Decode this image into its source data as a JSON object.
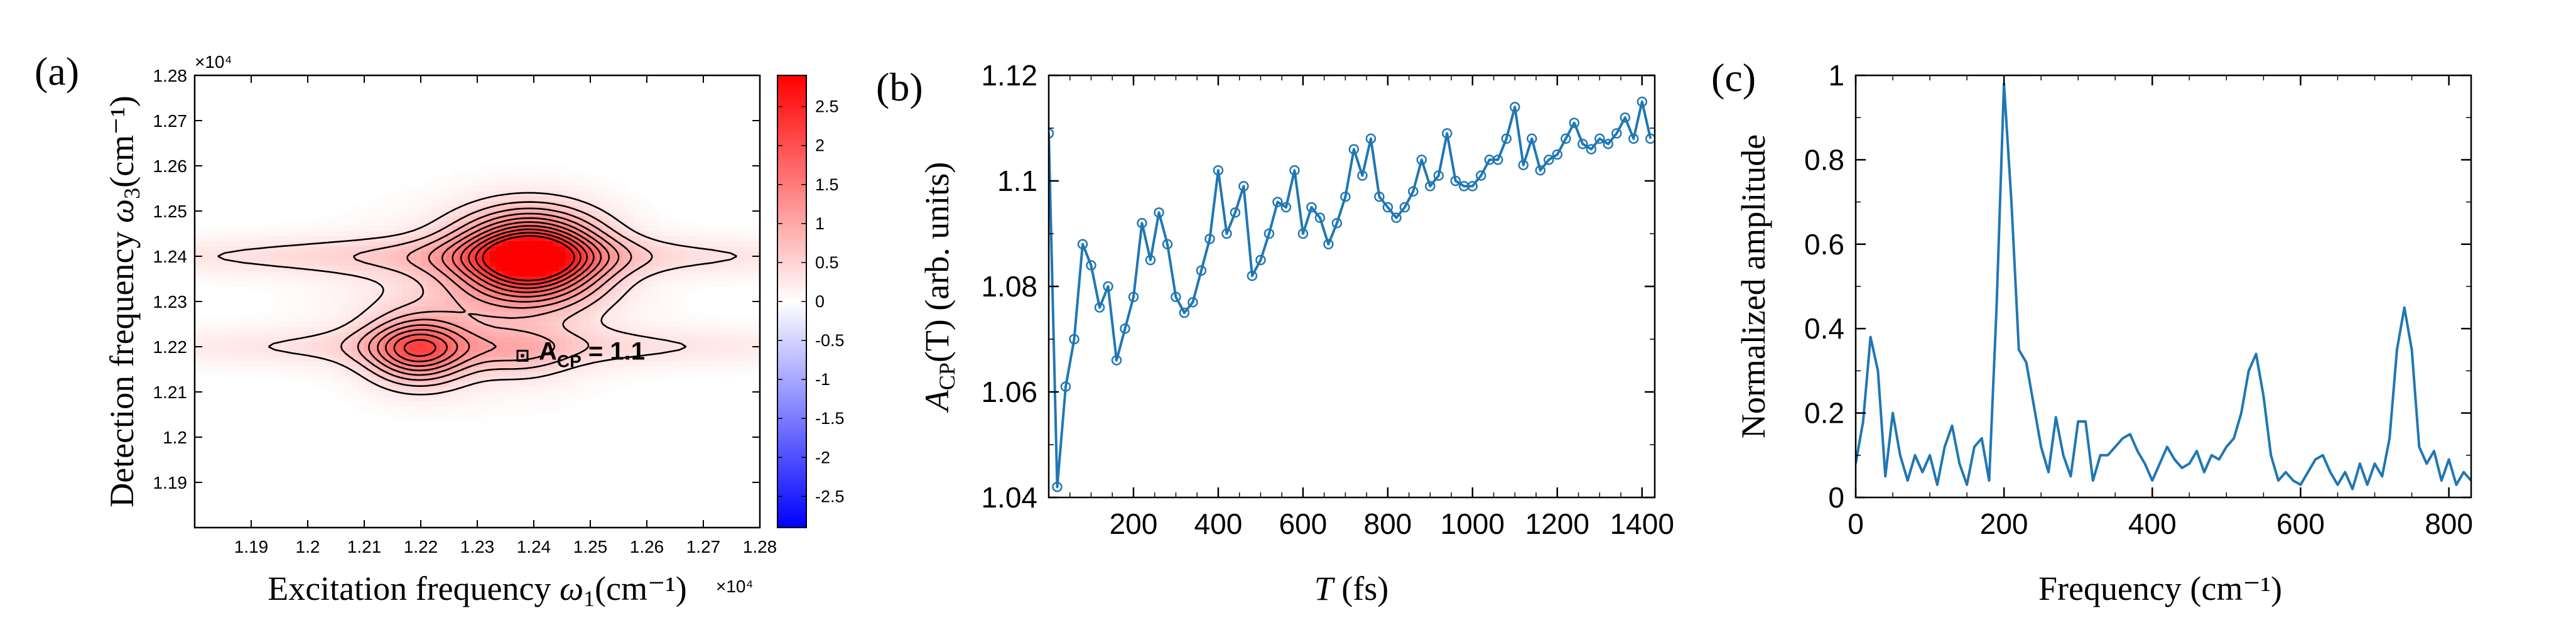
{
  "chart_data": [
    {
      "panel": "(a)",
      "type": "heatmap",
      "xlabel": "Excitation frequency",
      "xlabel_sym": "ω",
      "xlabel_sub": "1",
      "xlabel_unit": "(cm⁻¹)",
      "ylabel": "Detection frequency",
      "ylabel_sym": "ω",
      "ylabel_sub": "3",
      "ylabel_unit": "(cm⁻¹)",
      "x_exponent": "×10⁴",
      "y_exponent": "×10⁴",
      "xlim": [
        1.18,
        1.28
      ],
      "ylim": [
        1.18,
        1.28
      ],
      "xticks": [
        1.19,
        1.2,
        1.21,
        1.22,
        1.23,
        1.24,
        1.25,
        1.26,
        1.27,
        1.28
      ],
      "yticks": [
        1.19,
        1.2,
        1.21,
        1.22,
        1.23,
        1.24,
        1.25,
        1.26,
        1.27,
        1.28
      ],
      "xtick_labels": [
        "1.19",
        "1.2",
        "1.21",
        "1.22",
        "1.23",
        "1.24",
        "1.25",
        "1.26",
        "1.27",
        "1.28"
      ],
      "ytick_labels": [
        "1.19",
        "1.2",
        "1.21",
        "1.22",
        "1.23",
        "1.24",
        "1.25",
        "1.26",
        "1.27",
        "1.28"
      ],
      "peaks": [
        {
          "x": 1.2395,
          "y": 1.2398,
          "amp": 2.9,
          "sx": 0.0085,
          "sy": 0.0065
        },
        {
          "x": 1.2195,
          "y": 1.2192,
          "amp": 1.6,
          "sx": 0.006,
          "sy": 0.005
        },
        {
          "x": 1.23,
          "y": 1.23,
          "amp": 0.45,
          "sx": 0.015,
          "sy": 0.011
        },
        {
          "x": 1.238,
          "y": 1.218,
          "amp": 0.35,
          "sx": 0.006,
          "sy": 0.004
        },
        {
          "x": 1.23,
          "y": 1.24,
          "amp": 0.5,
          "sx": 0.045,
          "sy": 0.003
        },
        {
          "x": 1.23,
          "y": 1.22,
          "amp": 0.4,
          "sx": 0.045,
          "sy": 0.003
        }
      ],
      "contour_levels": [
        0.3,
        0.55,
        0.8,
        1.05,
        1.3,
        1.55,
        1.8,
        2.05,
        2.3,
        2.55
      ],
      "marker": {
        "x": 1.238,
        "y": 1.218
      },
      "annotation_main": "A",
      "annotation_sub": "CP",
      "annotation_value": " = 1.1",
      "colorbar": {
        "range": [
          -2.9,
          2.9
        ],
        "ticks": [
          2.5,
          2,
          1.5,
          1,
          0.5,
          0,
          -0.5,
          -1,
          -1.5,
          -2,
          -2.5
        ],
        "tick_labels": [
          "2.5",
          "2",
          "1.5",
          "1",
          "0.5",
          "0",
          "-0.5",
          "-1",
          "-1.5",
          "-2",
          "-2.5"
        ]
      },
      "colors": {
        "positive": "#ff0000",
        "negative": "#0000ff"
      }
    },
    {
      "panel": "(b)",
      "type": "line",
      "xlabel": "T",
      "xlabel_unit": " (fs)",
      "ylabel_main": "A",
      "ylabel_sub": "CP",
      "ylabel_rest": "(T) (arb. units)",
      "xlim": [
        0,
        1430
      ],
      "ylim": [
        1.04,
        1.12
      ],
      "xticks": [
        200,
        400,
        600,
        800,
        1000,
        1200,
        1400
      ],
      "xtick_labels": [
        "200",
        "400",
        "600",
        "800",
        "1000",
        "1200",
        "1400"
      ],
      "yticks": [
        1.04,
        1.06,
        1.08,
        1.1,
        1.12
      ],
      "ytick_labels": [
        "1.04",
        "1.06",
        "1.08",
        "1.1",
        "1.12"
      ],
      "x": [
        0,
        20,
        40,
        60,
        80,
        100,
        120,
        140,
        160,
        180,
        200,
        220,
        240,
        260,
        280,
        300,
        320,
        340,
        360,
        380,
        400,
        420,
        440,
        460,
        480,
        500,
        520,
        540,
        560,
        580,
        600,
        620,
        640,
        660,
        680,
        700,
        720,
        740,
        760,
        780,
        800,
        820,
        840,
        860,
        880,
        900,
        920,
        940,
        960,
        980,
        1000,
        1020,
        1040,
        1060,
        1080,
        1100,
        1120,
        1140,
        1160,
        1180,
        1200,
        1220,
        1240,
        1260,
        1280,
        1300,
        1320,
        1340,
        1360,
        1380,
        1400,
        1420
      ],
      "y": [
        1.109,
        1.042,
        1.061,
        1.07,
        1.088,
        1.084,
        1.076,
        1.08,
        1.066,
        1.072,
        1.078,
        1.092,
        1.085,
        1.094,
        1.088,
        1.078,
        1.075,
        1.077,
        1.083,
        1.089,
        1.102,
        1.09,
        1.094,
        1.099,
        1.082,
        1.085,
        1.09,
        1.096,
        1.095,
        1.102,
        1.09,
        1.095,
        1.093,
        1.088,
        1.092,
        1.097,
        1.106,
        1.101,
        1.108,
        1.097,
        1.095,
        1.093,
        1.095,
        1.098,
        1.104,
        1.099,
        1.101,
        1.109,
        1.1,
        1.099,
        1.099,
        1.101,
        1.104,
        1.104,
        1.108,
        1.114,
        1.103,
        1.108,
        1.102,
        1.104,
        1.105,
        1.108,
        1.111,
        1.107,
        1.106,
        1.108,
        1.107,
        1.109,
        1.112,
        1.108,
        1.115,
        1.108
      ],
      "color": "#1f77b4"
    },
    {
      "panel": "(c)",
      "type": "line",
      "xlabel": "Frequency (cm⁻¹)",
      "ylabel": "Normalized amplitude",
      "xlim": [
        0,
        830
      ],
      "ylim": [
        0,
        1
      ],
      "xticks": [
        0,
        200,
        400,
        600,
        800
      ],
      "xtick_labels": [
        "0",
        "200",
        "400",
        "600",
        "800"
      ],
      "yticks": [
        0,
        0.2,
        0.4,
        0.6,
        0.8,
        1
      ],
      "ytick_labels": [
        "0",
        "0.2",
        "0.4",
        "0.6",
        "0.8",
        "1"
      ],
      "x": [
        0,
        10,
        20,
        30,
        40,
        50,
        60,
        70,
        80,
        90,
        100,
        110,
        120,
        130,
        140,
        150,
        160,
        170,
        180,
        190,
        200,
        210,
        220,
        230,
        240,
        250,
        260,
        270,
        280,
        290,
        300,
        310,
        320,
        330,
        340,
        350,
        360,
        370,
        380,
        390,
        400,
        410,
        420,
        430,
        440,
        450,
        460,
        470,
        480,
        490,
        500,
        510,
        520,
        530,
        540,
        550,
        560,
        570,
        580,
        590,
        600,
        610,
        620,
        630,
        640,
        650,
        660,
        670,
        680,
        690,
        700,
        710,
        720,
        730,
        740,
        750,
        760,
        770,
        780,
        790,
        800,
        810,
        820,
        830
      ],
      "y": [
        0.08,
        0.18,
        0.38,
        0.3,
        0.05,
        0.2,
        0.1,
        0.04,
        0.1,
        0.06,
        0.1,
        0.03,
        0.12,
        0.17,
        0.08,
        0.03,
        0.12,
        0.14,
        0.04,
        0.45,
        0.98,
        0.7,
        0.35,
        0.32,
        0.22,
        0.12,
        0.06,
        0.19,
        0.1,
        0.05,
        0.18,
        0.18,
        0.04,
        0.1,
        0.1,
        0.12,
        0.14,
        0.15,
        0.11,
        0.08,
        0.04,
        0.08,
        0.12,
        0.09,
        0.07,
        0.08,
        0.11,
        0.06,
        0.1,
        0.09,
        0.12,
        0.14,
        0.2,
        0.3,
        0.34,
        0.24,
        0.1,
        0.04,
        0.06,
        0.04,
        0.03,
        0.06,
        0.09,
        0.1,
        0.06,
        0.03,
        0.06,
        0.02,
        0.08,
        0.03,
        0.08,
        0.05,
        0.14,
        0.35,
        0.45,
        0.35,
        0.12,
        0.08,
        0.11,
        0.04,
        0.09,
        0.03,
        0.06,
        0.04
      ],
      "color": "#1f77b4"
    }
  ]
}
